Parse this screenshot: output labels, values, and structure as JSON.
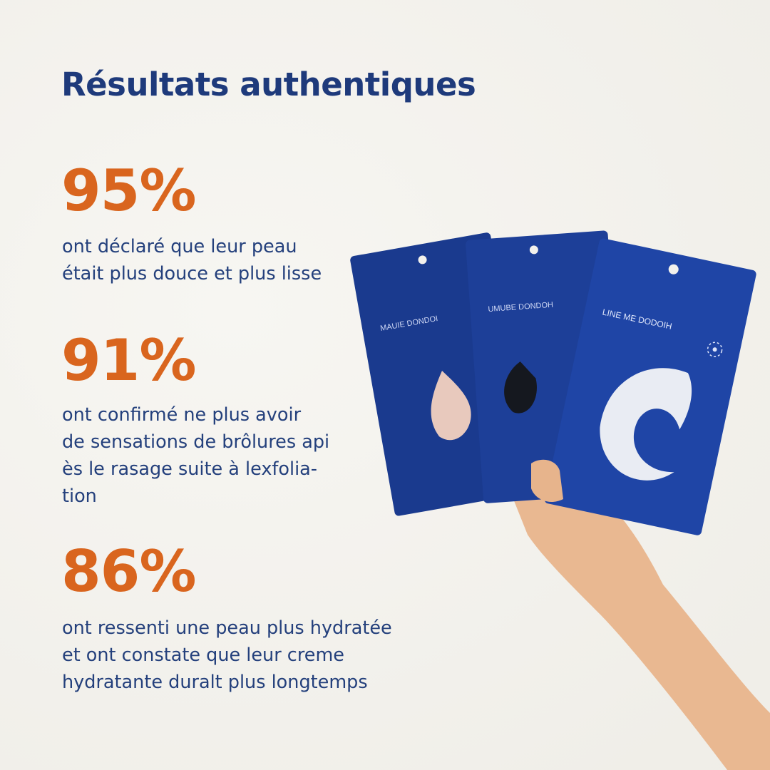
{
  "title": "Résultats authentiques",
  "stats": [
    {
      "value": "95%",
      "text": "ont déclaré que leur peau\nétait plus douce et plus lisse"
    },
    {
      "value": "91%",
      "text": "ont confirmé ne plus avoir\nde sensations de brôlures api\nès le rasage suite à lexfolia-\ntion"
    },
    {
      "value": "86%",
      "text": "ont ressenti une peau plus hydratée\net ont constate que leur creme\nhydratante duralt plus longtemps"
    }
  ],
  "product_image": {
    "pouch_labels": [
      "MAUIE DONDOI",
      "UMUBE DONDOH",
      "LINE ME DODOIH"
    ],
    "colors": {
      "pouch": "#1c3f9a",
      "title": "#1e3a7b",
      "accent": "#d9651e",
      "text": "#24407c"
    }
  }
}
